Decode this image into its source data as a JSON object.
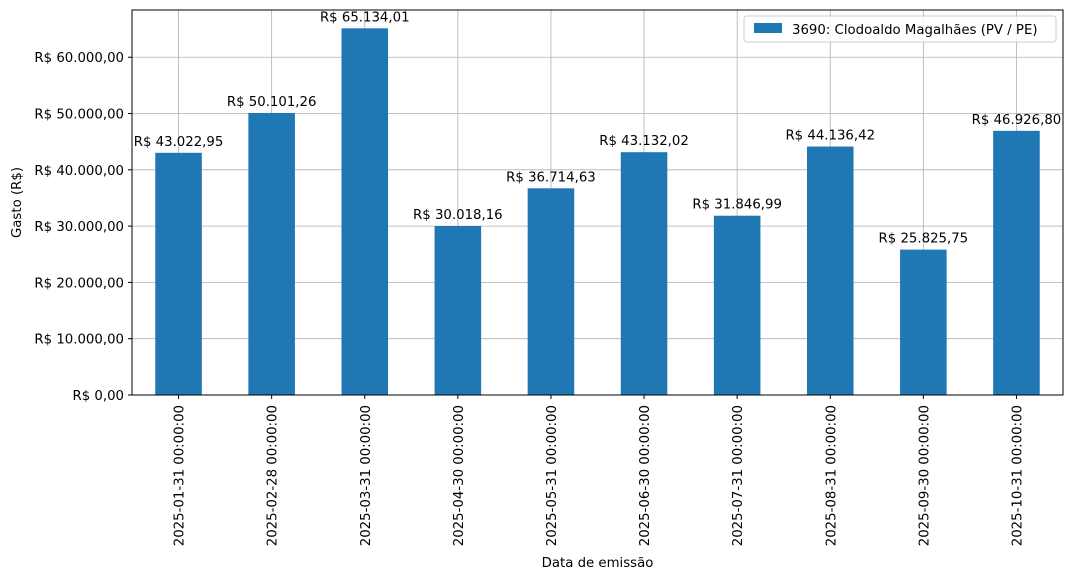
{
  "chart_data": {
    "type": "bar",
    "title": "",
    "xlabel": "Data de emissão",
    "ylabel": "Gasto (R$)",
    "categories": [
      "2025-01-31 00:00:00",
      "2025-02-28 00:00:00",
      "2025-03-31 00:00:00",
      "2025-04-30 00:00:00",
      "2025-05-31 00:00:00",
      "2025-06-30 00:00:00",
      "2025-07-31 00:00:00",
      "2025-08-31 00:00:00",
      "2025-09-30 00:00:00",
      "2025-10-31 00:00:00"
    ],
    "series": [
      {
        "name": "3690: Clodoaldo Magalhães (PV / PE)",
        "color": "#1f77b4",
        "values": [
          43022.95,
          50101.26,
          65134.01,
          30018.16,
          36714.63,
          43132.02,
          31846.99,
          44136.42,
          25825.75,
          46926.8
        ],
        "labels": [
          "R$ 43.022,95",
          "R$ 50.101,26",
          "R$ 65.134,01",
          "R$ 30.018,16",
          "R$ 36.714,63",
          "R$ 43.132,02",
          "R$ 31.846,99",
          "R$ 44.136,42",
          "R$ 25.825,75",
          "R$ 46.926,80"
        ]
      }
    ],
    "yticks": [
      0,
      10000,
      20000,
      30000,
      40000,
      50000,
      60000
    ],
    "ytick_labels": [
      "R$ 0,00",
      "R$ 10.000,00",
      "R$ 20.000,00",
      "R$ 30.000,00",
      "R$ 40.000,00",
      "R$ 50.000,00",
      "R$ 60.000,00"
    ],
    "ylim": [
      0,
      68390.71
    ],
    "grid": true,
    "legend_position": "top-right"
  }
}
